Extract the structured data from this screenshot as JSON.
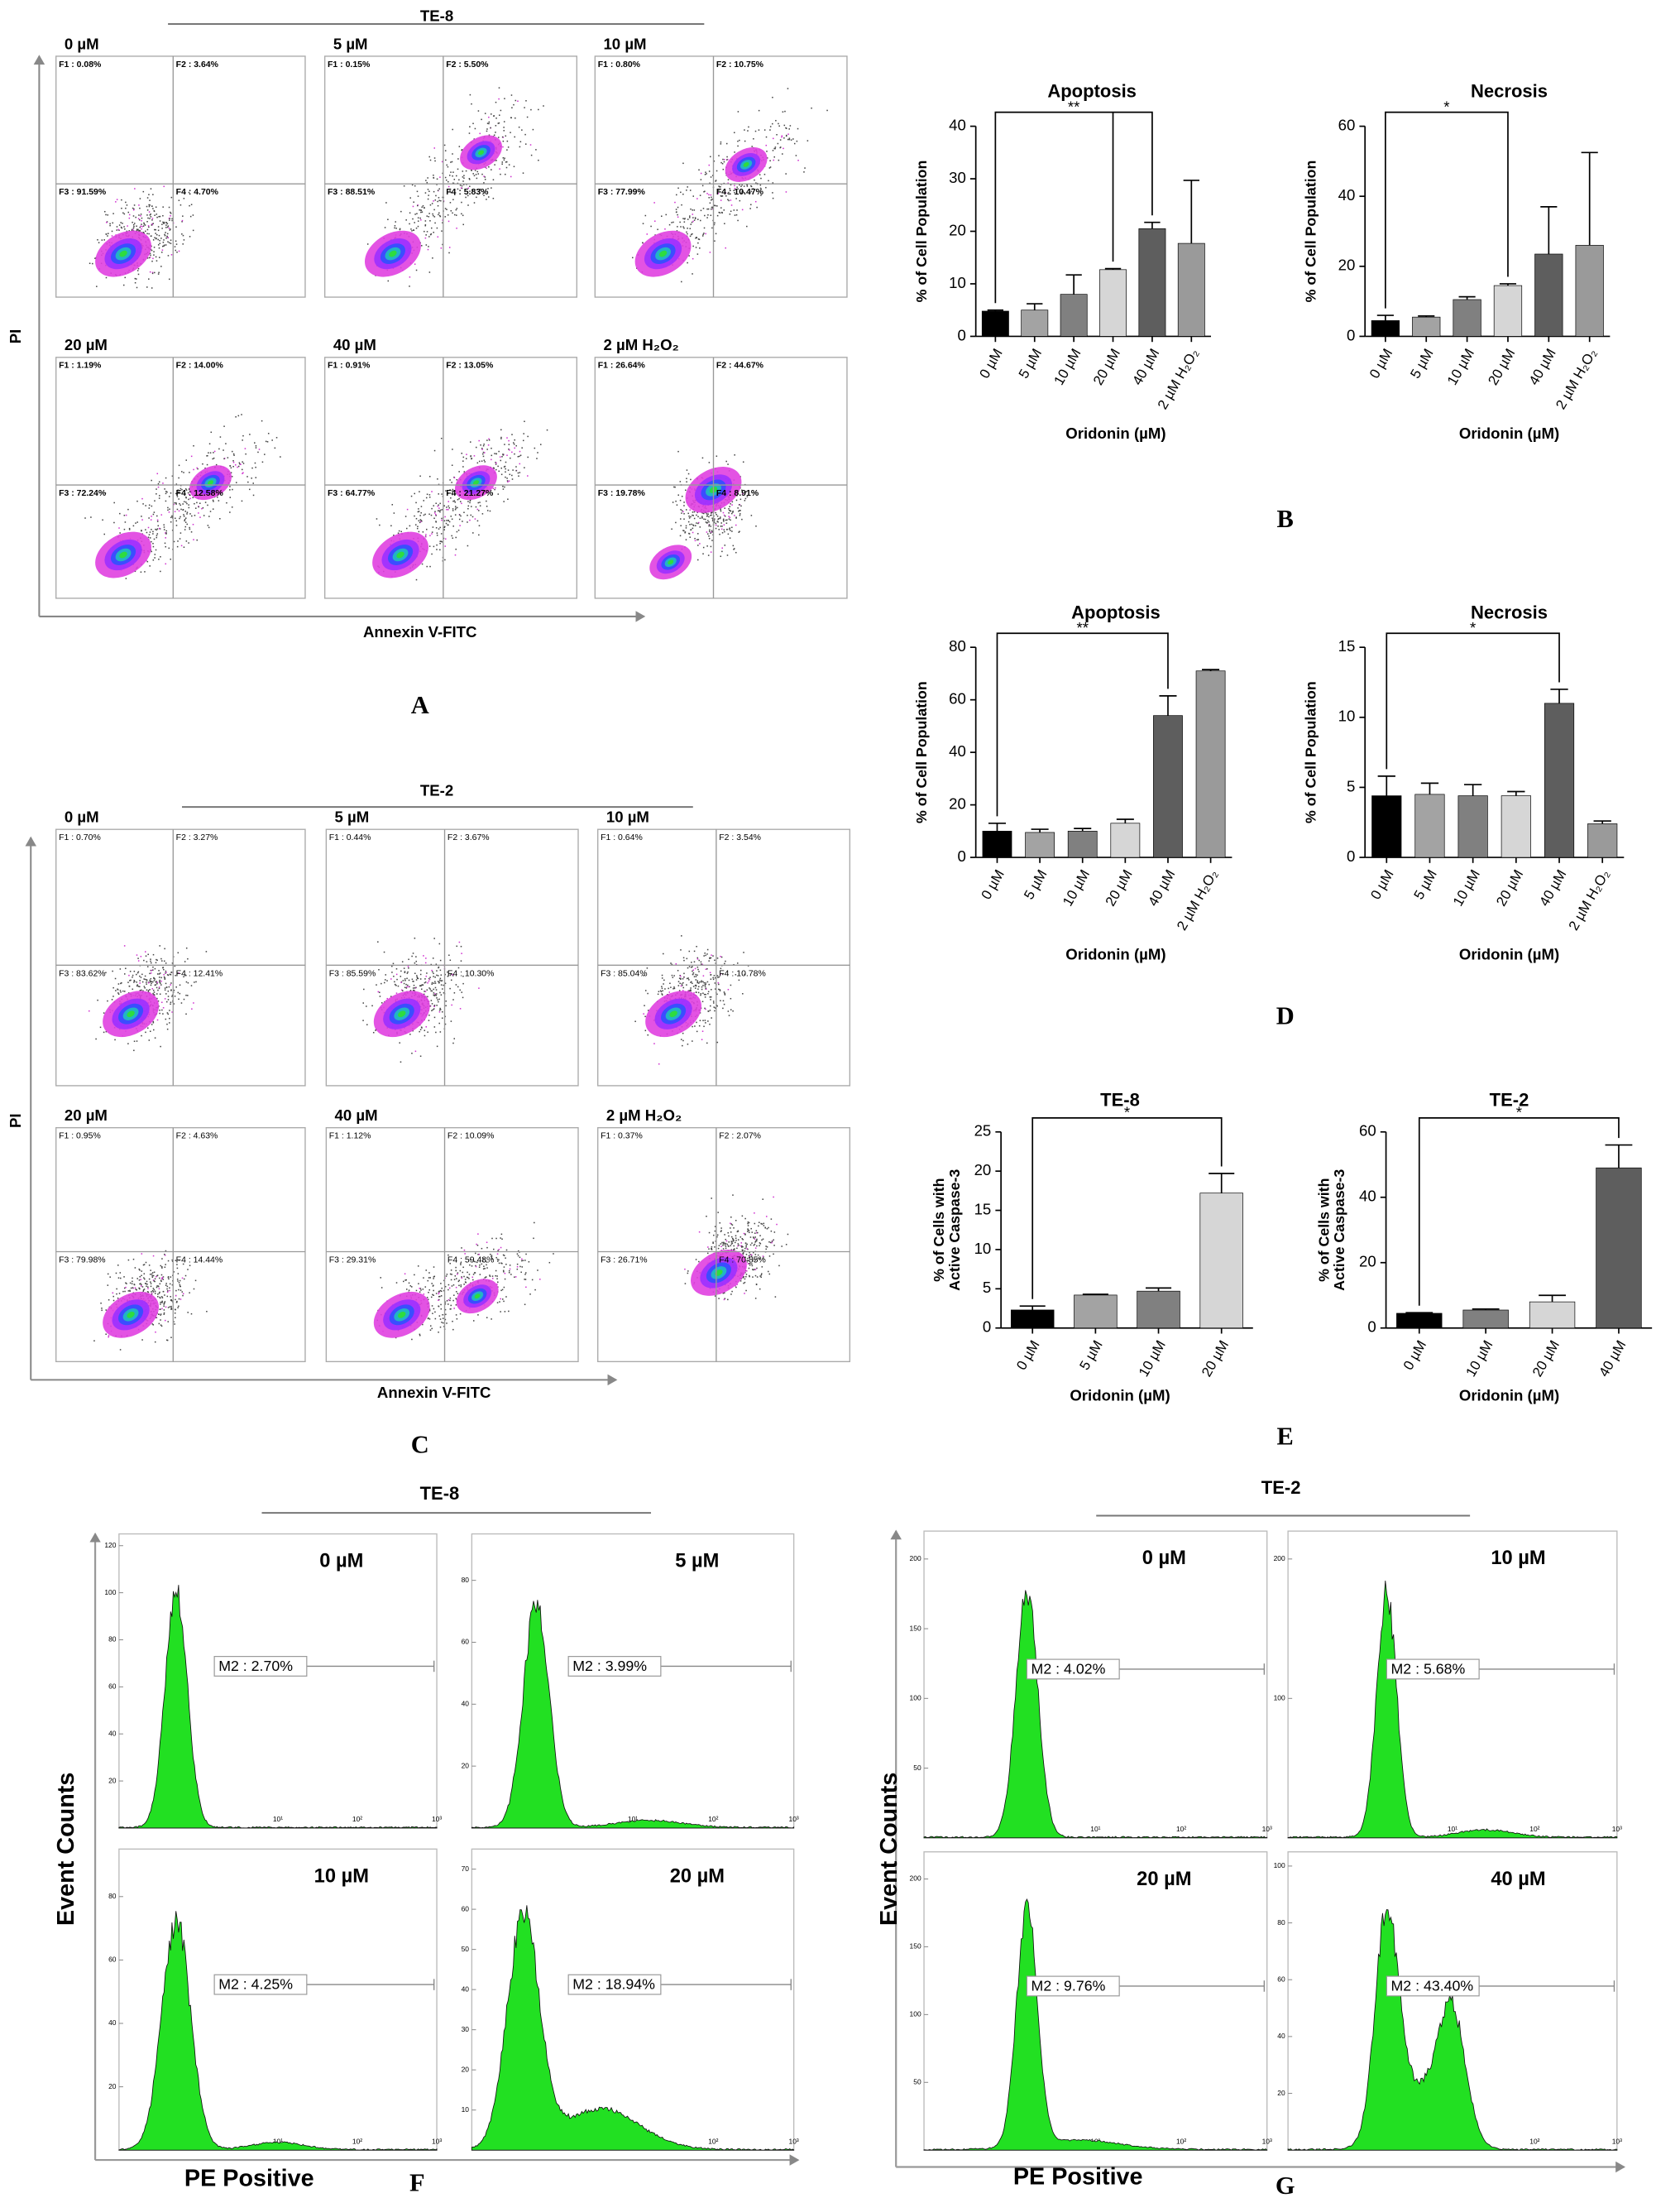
{
  "flow_A": {
    "label": "A",
    "group": "TE-8",
    "y_label": "PI",
    "x_label": "Annexin V-FITC",
    "plots": [
      {
        "title": "0 µM",
        "quadrants": [
          "F1 : 0.08%",
          "F2 : 3.64%",
          "F3 : 91.59%",
          "F4 : 4.70%"
        ]
      },
      {
        "title": "5 µM",
        "quadrants": [
          "F1 : 0.15%",
          "F2 : 5.50%",
          "F3 : 88.51%",
          "F4 : 5.83%"
        ]
      },
      {
        "title": "10 µM",
        "quadrants": [
          "F1 : 0.80%",
          "F2 : 10.75%",
          "F3 : 77.99%",
          "F4 : 10.47%"
        ]
      },
      {
        "title": "20 µM",
        "quadrants": [
          "F1 : 1.19%",
          "F2 : 14.00%",
          "F3 : 72.24%",
          "F4 : 12.58%"
        ]
      },
      {
        "title": "40 µM",
        "quadrants": [
          "F1 : 0.91%",
          "F2 : 13.05%",
          "F3 : 64.77%",
          "F4 : 21.27%"
        ]
      },
      {
        "title": "2 µM H₂O₂",
        "quadrants": [
          "F1 : 26.64%",
          "F2 : 44.67%",
          "F3 : 19.78%",
          "F4 : 8.91%"
        ]
      }
    ]
  },
  "flow_C": {
    "label": "C",
    "group": "TE-2",
    "y_label": "PI",
    "x_label": "Annexin V-FITC",
    "plots": [
      {
        "title": "0 µM",
        "quadrants": [
          "F1 : 0.70%",
          "F2 : 3.27%",
          "F3 : 83.62%",
          "F4 : 12.41%"
        ]
      },
      {
        "title": "5 µM",
        "quadrants": [
          "F1 : 0.44%",
          "F2 : 3.67%",
          "F3 : 85.59%",
          "F4 : 10.30%"
        ]
      },
      {
        "title": "10 µM",
        "quadrants": [
          "F1 : 0.64%",
          "F2 : 3.54%",
          "F3 : 85.04%",
          "F4 : 10.78%"
        ]
      },
      {
        "title": "20 µM",
        "quadrants": [
          "F1 : 0.95%",
          "F2 : 4.63%",
          "F3 : 79.98%",
          "F4 : 14.44%"
        ]
      },
      {
        "title": "40 µM",
        "quadrants": [
          "F1 : 1.12%",
          "F2 : 10.09%",
          "F3 : 29.31%",
          "F4 : 59.48%"
        ]
      },
      {
        "title": "2 µM H₂O₂",
        "quadrants": [
          "F1 : 0.37%",
          "F2 : 2.07%",
          "F3 : 26.71%",
          "F4 : 70.85%"
        ]
      }
    ]
  },
  "hist_F": {
    "label": "F",
    "group": "TE-8",
    "y_label": "Event Counts",
    "x_label": "PE Positive",
    "xticks": [
      "10⁰",
      "10¹",
      "10²",
      "10³"
    ],
    "plots": [
      {
        "title": "0 µM",
        "gate": "M2 : 2.70%",
        "ylim": [
          0,
          125
        ],
        "yticks": [
          20,
          40,
          60,
          80,
          100,
          120
        ]
      },
      {
        "title": "5 µM",
        "gate": "M2 : 3.99%",
        "ylim": [
          0,
          95
        ],
        "yticks": [
          20,
          40,
          60,
          80
        ]
      },
      {
        "title": "10 µM",
        "gate": "M2 : 4.25%",
        "ylim": [
          0,
          95
        ],
        "yticks": [
          20,
          40,
          60,
          80
        ]
      },
      {
        "title": "20 µM",
        "gate": "M2 : 18.94%",
        "ylim": [
          0,
          75
        ],
        "yticks": [
          10,
          20,
          30,
          40,
          50,
          60,
          70
        ]
      }
    ]
  },
  "hist_G": {
    "label": "G",
    "group": "TE-2",
    "y_label": "Event Counts",
    "x_label": "PE Positive",
    "xticks": [
      "10⁰",
      "10¹",
      "10²",
      "10³"
    ],
    "plots": [
      {
        "title": "0 µM",
        "gate": "M2 : 4.02%",
        "ylim": [
          0,
          220
        ],
        "yticks": [
          50,
          100,
          150,
          200
        ]
      },
      {
        "title": "10 µM",
        "gate": "M2 : 5.68%",
        "ylim": [
          0,
          220
        ],
        "yticks": [
          100,
          200
        ]
      },
      {
        "title": "20 µM",
        "gate": "M2 : 9.76%",
        "ylim": [
          0,
          220
        ],
        "yticks": [
          50,
          100,
          150,
          200
        ]
      },
      {
        "title": "40 µM",
        "gate": "M2 : 43.40%",
        "ylim": [
          0,
          105
        ],
        "yticks": [
          20,
          40,
          60,
          80,
          100
        ]
      }
    ]
  },
  "panel_labels": [
    "B",
    "D",
    "E"
  ],
  "chart_data": [
    {
      "type": "bar",
      "title": "Apoptosis",
      "x_label": "Oridonin (µM)",
      "y_label": [
        "% of Cell Population"
      ],
      "annotation": "**",
      "categories": [
        "0 µM",
        "5 µM",
        "10 µM",
        "20 µM",
        "40 µM",
        "2 µM H₂O₂"
      ],
      "values": [
        4.8,
        5,
        8,
        12.7,
        20.5,
        17.7
      ],
      "errors": [
        0.2,
        1.2,
        3.7,
        0.2,
        1.2,
        12
      ],
      "colors": [
        "#000000",
        "#a3a3a3",
        "#808080",
        "#d6d6d6",
        "#5e5e5e",
        "#9a9a9a"
      ],
      "ylim": [
        0,
        40
      ],
      "yticks": [
        0,
        10,
        20,
        30,
        40
      ]
    },
    {
      "type": "bar",
      "title": "Necrosis",
      "x_label": "Oridonin (µM)",
      "y_label": [
        "% of Cell Population"
      ],
      "annotation": "*",
      "categories": [
        "0 µM",
        "5 µM",
        "10 µM",
        "20 µM",
        "40 µM",
        "2 µM H₂O₂"
      ],
      "values": [
        4.5,
        5.5,
        10.5,
        14.5,
        23.5,
        26
      ],
      "errors": [
        1.5,
        0.3,
        0.8,
        0.5,
        13.5,
        26.5
      ],
      "colors": [
        "#000000",
        "#a3a3a3",
        "#808080",
        "#d6d6d6",
        "#5e5e5e",
        "#9a9a9a"
      ],
      "ylim": [
        0,
        60
      ],
      "yticks": [
        0,
        20,
        40,
        60
      ]
    },
    {
      "type": "bar",
      "title": "Apoptosis",
      "x_label": "Oridonin (µM)",
      "y_label": [
        "% of Cell Population"
      ],
      "annotation": "**",
      "categories": [
        "0 µM",
        "5 µM",
        "10 µM",
        "20 µM",
        "40 µM",
        "2 µM H₂O₂"
      ],
      "values": [
        10,
        9.5,
        10,
        13,
        54,
        71
      ],
      "errors": [
        3,
        1.2,
        1,
        1.5,
        7.5,
        0.5
      ],
      "colors": [
        "#000000",
        "#a3a3a3",
        "#808080",
        "#d6d6d6",
        "#5e5e5e",
        "#9a9a9a"
      ],
      "ylim": [
        0,
        80
      ],
      "yticks": [
        0,
        20,
        40,
        60,
        80
      ]
    },
    {
      "type": "bar",
      "title": "Necrosis",
      "x_label": "Oridonin (µM)",
      "y_label": [
        "% of Cell Population"
      ],
      "annotation": "*",
      "categories": [
        "0 µM",
        "5 µM",
        "10 µM",
        "20 µM",
        "40 µM",
        "2 µM H₂O₂"
      ],
      "values": [
        4.4,
        4.5,
        4.4,
        4.4,
        11,
        2.4
      ],
      "errors": [
        1.4,
        0.8,
        0.8,
        0.3,
        1,
        0.2
      ],
      "colors": [
        "#000000",
        "#a3a3a3",
        "#808080",
        "#d6d6d6",
        "#5e5e5e",
        "#9a9a9a"
      ],
      "ylim": [
        0,
        15
      ],
      "yticks": [
        0,
        5,
        10,
        15
      ]
    },
    {
      "type": "bar",
      "title": "TE-8",
      "x_label": "Oridonin (µM)",
      "y_label": [
        "% of Cells with",
        "Active Caspase-3"
      ],
      "annotation": "*",
      "categories": [
        "0 µM",
        "5 µM",
        "10 µM",
        "20 µM"
      ],
      "values": [
        2.3,
        4.2,
        4.7,
        17.2
      ],
      "errors": [
        0.5,
        0.1,
        0.4,
        2.5
      ],
      "colors": [
        "#000000",
        "#a3a3a3",
        "#808080",
        "#d6d6d6"
      ],
      "ylim": [
        0,
        25
      ],
      "yticks": [
        0,
        5,
        10,
        15,
        20,
        25
      ]
    },
    {
      "type": "bar",
      "title": "TE-2",
      "x_label": "Oridonin (µM)",
      "y_label": [
        "% of Cells with",
        "Active Caspase-3"
      ],
      "annotation": "*",
      "categories": [
        "0 µM",
        "10 µM",
        "20 µM",
        "40 µM"
      ],
      "values": [
        4.5,
        5.5,
        8,
        49
      ],
      "errors": [
        0.2,
        0.3,
        2,
        7
      ],
      "colors": [
        "#000000",
        "#808080",
        "#d6d6d6",
        "#5e5e5e"
      ],
      "ylim": [
        0,
        60
      ],
      "yticks": [
        0,
        20,
        40,
        60
      ]
    }
  ]
}
